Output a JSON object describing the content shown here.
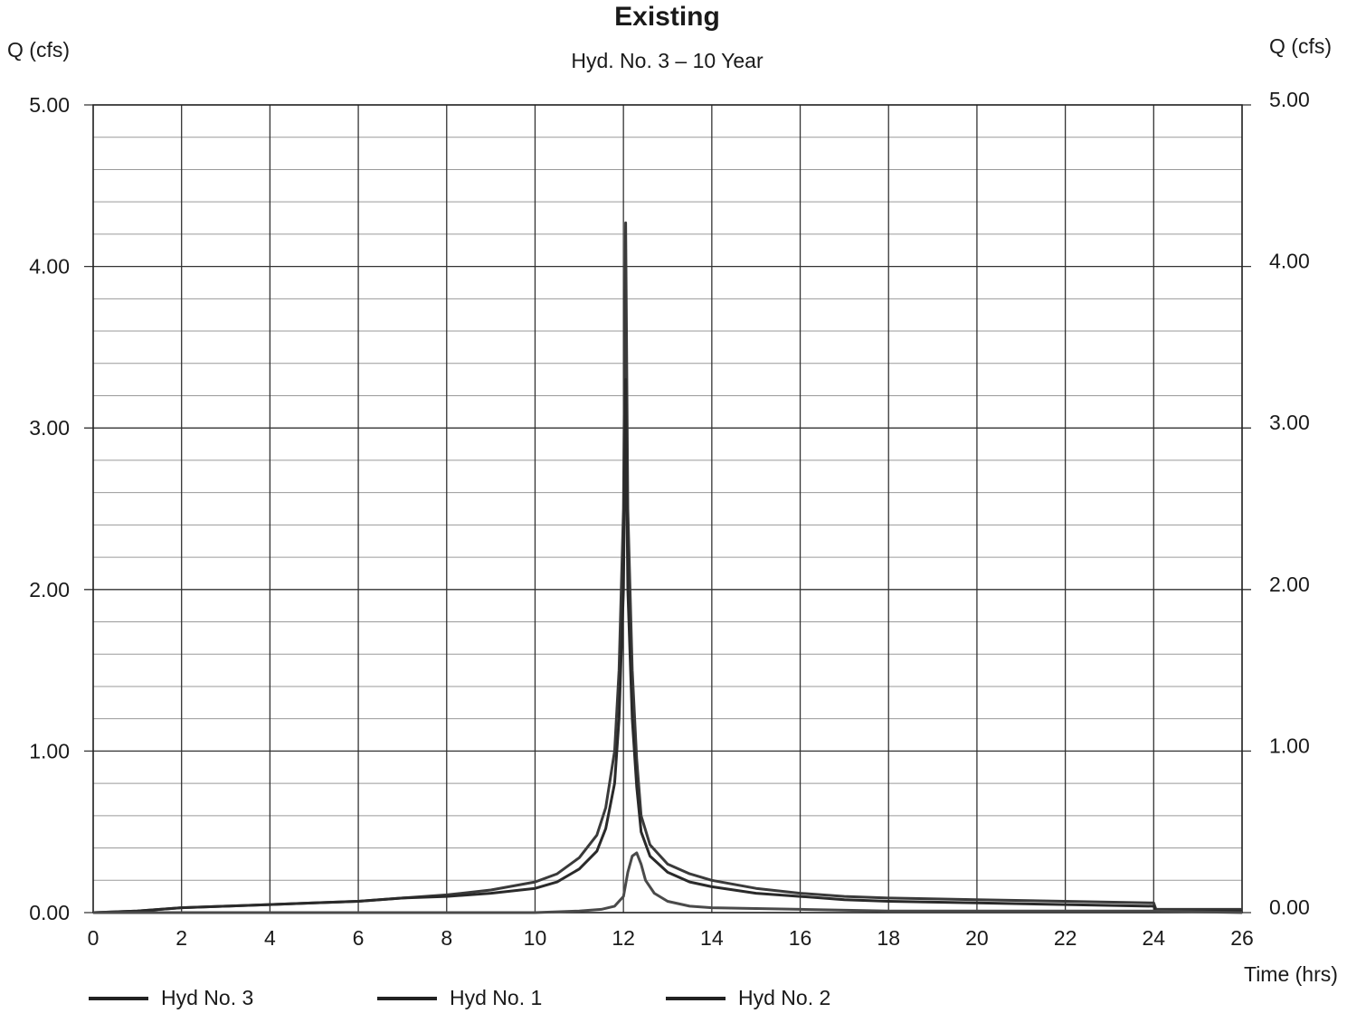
{
  "chart_data": {
    "type": "line",
    "title": "Existing",
    "subtitle": "Hyd. No. 3 – 10 Year",
    "ylabel_left": "Q (cfs)",
    "ylabel_right": "Q (cfs)",
    "xlabel": "Time (hrs)",
    "xlim": [
      0,
      26
    ],
    "ylim": [
      0,
      5
    ],
    "x_ticks": [
      "0",
      "2",
      "4",
      "6",
      "8",
      "10",
      "12",
      "14",
      "16",
      "18",
      "20",
      "22",
      "24",
      "26"
    ],
    "y_ticks": [
      "0.00",
      "1.00",
      "2.00",
      "3.00",
      "4.00",
      "5.00"
    ],
    "grid": true,
    "legend_position": "bottom",
    "series": [
      {
        "name": "Hyd No. 3",
        "color": "#3a3a3a",
        "x": [
          0,
          1,
          2,
          3,
          4,
          5,
          6,
          7,
          8,
          9,
          10,
          10.5,
          11,
          11.4,
          11.6,
          11.8,
          11.9,
          12.0,
          12.05,
          12.1,
          12.2,
          12.3,
          12.4,
          12.6,
          13,
          13.5,
          14,
          15,
          16,
          17,
          18,
          20,
          22,
          24,
          24.05,
          26
        ],
        "values": [
          0,
          0.01,
          0.03,
          0.04,
          0.05,
          0.06,
          0.07,
          0.09,
          0.11,
          0.14,
          0.19,
          0.24,
          0.34,
          0.48,
          0.65,
          1.0,
          1.5,
          2.5,
          4.27,
          2.5,
          1.5,
          0.95,
          0.6,
          0.42,
          0.3,
          0.24,
          0.2,
          0.15,
          0.12,
          0.1,
          0.09,
          0.08,
          0.07,
          0.06,
          0.02,
          0.02
        ]
      },
      {
        "name": "Hyd No. 1",
        "color": "#2a2a2a",
        "x": [
          0,
          1,
          2,
          3,
          4,
          5,
          6,
          7,
          8,
          9,
          10,
          10.5,
          11,
          11.4,
          11.6,
          11.8,
          11.9,
          12.0,
          12.05,
          12.1,
          12.2,
          12.3,
          12.4,
          12.6,
          13,
          13.5,
          14,
          15,
          16,
          17,
          18,
          20,
          22,
          24,
          24.05,
          26
        ],
        "values": [
          0,
          0.01,
          0.03,
          0.04,
          0.05,
          0.06,
          0.07,
          0.09,
          0.1,
          0.12,
          0.15,
          0.19,
          0.27,
          0.38,
          0.52,
          0.8,
          1.2,
          2.0,
          3.3,
          2.0,
          1.2,
          0.78,
          0.5,
          0.35,
          0.25,
          0.19,
          0.16,
          0.12,
          0.1,
          0.08,
          0.07,
          0.06,
          0.05,
          0.04,
          0.01,
          0.01
        ]
      },
      {
        "name": "Hyd No. 2",
        "color": "#4a4a4a",
        "x": [
          0,
          6,
          10,
          11,
          11.5,
          11.8,
          12.0,
          12.1,
          12.2,
          12.3,
          12.4,
          12.5,
          12.7,
          13,
          13.5,
          14,
          16,
          18,
          20,
          24,
          26
        ],
        "values": [
          0,
          0,
          0,
          0.01,
          0.02,
          0.04,
          0.1,
          0.25,
          0.35,
          0.37,
          0.3,
          0.2,
          0.12,
          0.07,
          0.04,
          0.03,
          0.02,
          0.01,
          0.01,
          0.01,
          0
        ]
      }
    ]
  }
}
